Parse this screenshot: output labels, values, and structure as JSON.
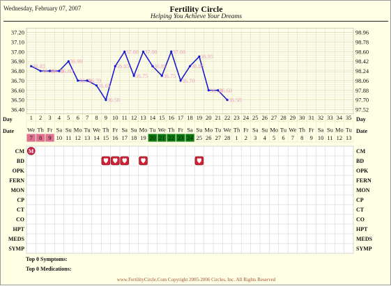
{
  "header": {
    "date": "Wednesday, February 07, 2007",
    "title": "Fertility Circle",
    "subtitle": "Helping You Achieve Your Dreams"
  },
  "colors": {
    "line": "#1a1acc",
    "value_label": "#e8a0b8",
    "menses_cell": "#e07090",
    "fertile_cell": "#0a7a10",
    "bd_icon": "#cc2233",
    "grid": "#d8d8b0",
    "background": "#ffffe6"
  },
  "chart_data": {
    "type": "line",
    "left_axis_ticks": [
      "37.20",
      "37.10",
      "37.00",
      "36.90",
      "36.80",
      "36.70",
      "36.60",
      "36.50",
      "36.40"
    ],
    "right_axis_ticks": [
      "98.96",
      "98.78",
      "98.60",
      "98.42",
      "98.24",
      "98.06",
      "97.88",
      "97.70",
      "97.52"
    ],
    "ylim": [
      36.4,
      37.2
    ],
    "x": [
      1,
      2,
      3,
      4,
      5,
      6,
      7,
      8,
      9,
      10,
      11,
      12,
      13,
      14,
      15,
      16,
      17,
      18,
      19,
      20,
      21,
      22
    ],
    "values": [
      36.85,
      36.8,
      36.8,
      36.8,
      36.9,
      36.7,
      36.7,
      36.65,
      36.5,
      36.85,
      37.0,
      36.75,
      37.0,
      36.85,
      36.75,
      37.0,
      36.7,
      36.85,
      36.95,
      36.6,
      36.6,
      36.5
    ],
    "value_labels": [
      "36.85",
      "36.80",
      "36.80",
      "36.80",
      "36.90",
      "36.70",
      "36.70",
      "36.65",
      "36.50",
      "36.85",
      "37.00",
      "36.75",
      "37.00",
      "36.85",
      "36.75",
      "37.00",
      "36.70",
      "36.85",
      "36.95",
      "36.60",
      "36.60",
      "36.50"
    ],
    "days": [
      "1",
      "2",
      "3",
      "4",
      "5",
      "6",
      "7",
      "8",
      "9",
      "10",
      "11",
      "12",
      "13",
      "14",
      "15",
      "16",
      "17",
      "18",
      "19",
      "20",
      "21",
      "22",
      "23",
      "24",
      "25",
      "26",
      "27",
      "28",
      "29",
      "30",
      "31",
      "32",
      "33",
      "34",
      "35"
    ],
    "weekdays": [
      "We",
      "Th",
      "Fr",
      "Sa",
      "Su",
      "Mo",
      "Tu",
      "We",
      "Th",
      "Fr",
      "Sa",
      "Su",
      "Mo",
      "Tu",
      "We",
      "Th",
      "Fr",
      "Sa",
      "Su",
      "Mo",
      "Tu",
      "We",
      "Th",
      "Fr",
      "Sa",
      "Su",
      "Mo",
      "Tu",
      "We",
      "Th",
      "Fr",
      "Sa",
      "Su",
      "Mo",
      "Tu"
    ],
    "dates": [
      "7",
      "8",
      "9",
      "10",
      "11",
      "12",
      "13",
      "14",
      "15",
      "16",
      "17",
      "18",
      "19",
      "20",
      "21",
      "22",
      "23",
      "24",
      "25",
      "26",
      "27",
      "28",
      "1",
      "2",
      "3",
      "4",
      "5",
      "6",
      "7",
      "8",
      "9",
      "10",
      "11",
      "12",
      "13"
    ],
    "menses_days": [
      1,
      2,
      3
    ],
    "fertile_days": [
      14,
      15,
      16,
      17,
      18
    ],
    "m_marker_day": 1,
    "m_marker_label": "M",
    "bd_days": [
      9,
      10,
      11,
      13,
      19
    ],
    "row_labels": [
      "Day",
      "Date",
      "CM",
      "BD",
      "OPK",
      "FERN",
      "MON",
      "CP",
      "CT",
      "CO",
      "HPT",
      "MEDS",
      "SYMP"
    ]
  },
  "footer": {
    "symptoms": "Top 0 Symptoms:",
    "medications": "Top 0 Medications:",
    "copyright": "www.FertilityCircle.Com Copyright 2005-2006 Circles, Inc. All Rights Reserved"
  }
}
